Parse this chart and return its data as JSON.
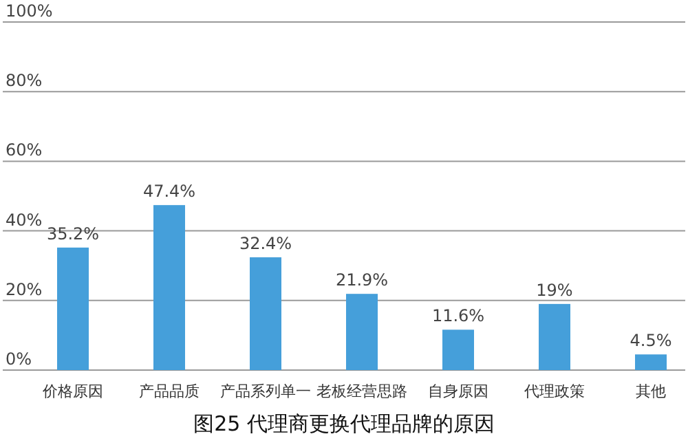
{
  "chart_data": {
    "type": "bar",
    "title": "图25 代理商更换代理品牌的原因",
    "categories": [
      "价格原因",
      "产品品质",
      "产品系列单一",
      "老板经营思路",
      "自身原因",
      "代理政策",
      "其他"
    ],
    "values": [
      35.2,
      47.4,
      32.4,
      21.9,
      11.6,
      19,
      4.5
    ],
    "value_labels": [
      "35.2%",
      "47.4%",
      "32.4%",
      "21.9%",
      "11.6%",
      "19%",
      "4.5%"
    ],
    "color": "#459fda",
    "ylim": [
      0,
      100
    ],
    "yticks": [
      {
        "value": 0,
        "label": "0%"
      },
      {
        "value": 20,
        "label": "20%"
      },
      {
        "value": 40,
        "label": "40%"
      },
      {
        "value": 60,
        "label": "60%"
      },
      {
        "value": 80,
        "label": "80%"
      },
      {
        "value": 100,
        "label": "100%"
      }
    ],
    "grid": "y"
  }
}
